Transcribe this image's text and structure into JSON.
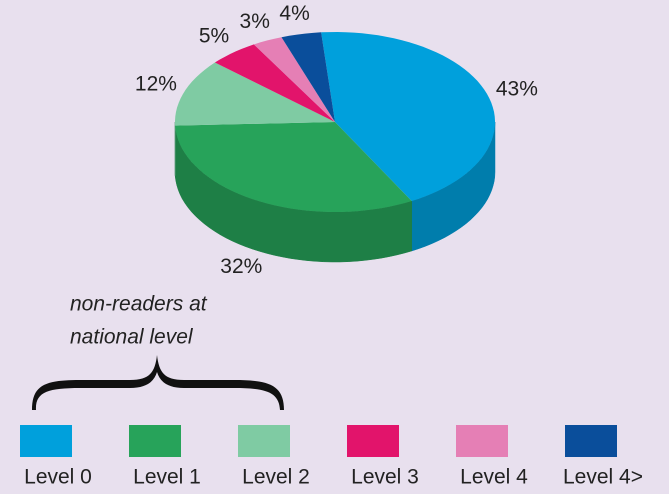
{
  "chart_data": {
    "type": "pie",
    "categories": [
      "Level 0",
      "Level 1",
      "Level 2",
      "Level 3",
      "Level 4",
      "Level 4>"
    ],
    "values": [
      43,
      32,
      12,
      5,
      3,
      4
    ],
    "value_labels": [
      "43%",
      "32%",
      "12%",
      "5%",
      "3%",
      "4%"
    ],
    "colors": [
      "#00a0dc",
      "#27a35a",
      "#7fcba3",
      "#e2146b",
      "#e57fb5",
      "#0a4e9b"
    ],
    "annotation": [
      "non-readers at",
      "national level"
    ]
  }
}
